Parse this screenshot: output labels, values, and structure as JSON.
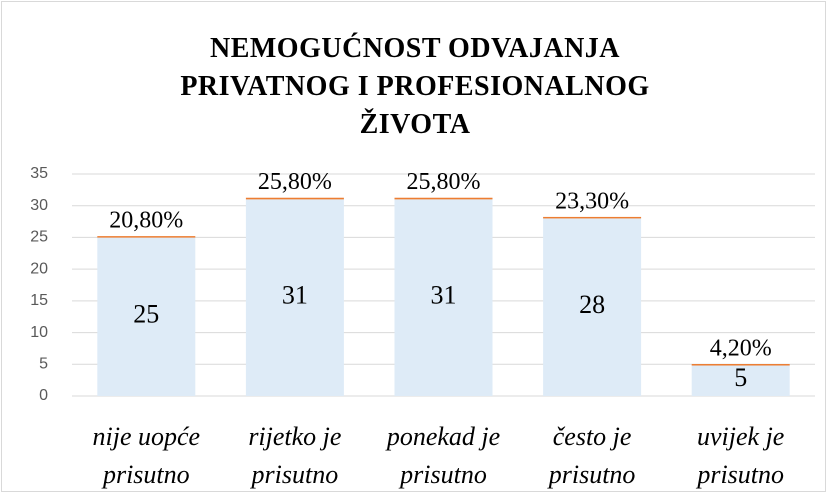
{
  "chart_data": {
    "type": "bar",
    "stacked": true,
    "title": "NEMOGUĆNOST ODVAJANJA PRIVATNOG I PROFESIONALNOG ŽIVOTA",
    "categories": [
      "nije uopće prisutno",
      "rijetko je prisutno",
      "ponekad je prisutno",
      "često je prisutno",
      "uvijek je prisutno"
    ],
    "series": [
      {
        "color": "#deebf7",
        "values": [
          25,
          31,
          31,
          28,
          5
        ]
      },
      {
        "color": "#ed7d31",
        "values": [
          0.208,
          0.258,
          0.258,
          0.233,
          0.042
        ],
        "value_labels": [
          "20,80%",
          "25,80%",
          "25,80%",
          "23,30%",
          "4,20%"
        ]
      }
    ],
    "ylim": [
      0,
      35
    ],
    "yticks": [
      0,
      5,
      10,
      15,
      20,
      25,
      30,
      35
    ],
    "grid": true
  }
}
